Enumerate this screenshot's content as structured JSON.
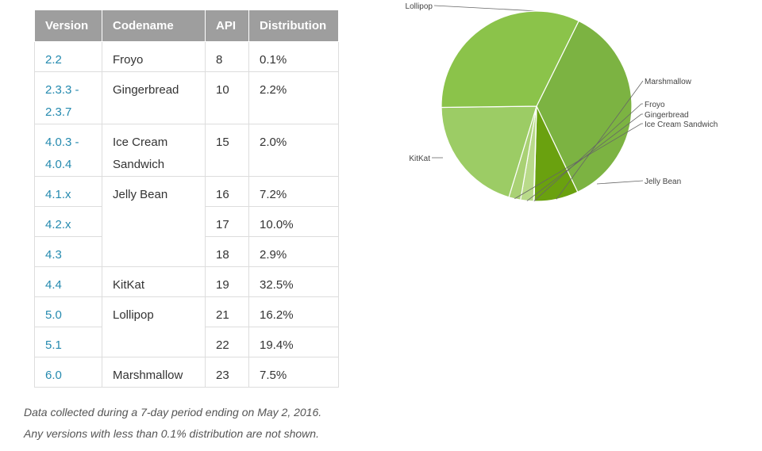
{
  "table": {
    "headers": [
      "Version",
      "Codename",
      "API",
      "Distribution"
    ],
    "rows": [
      {
        "version": "2.2",
        "codename": "Froyo",
        "api": "8",
        "distribution": "0.1%"
      },
      {
        "version": "2.3.3 -\n2.3.7",
        "codename": "Gingerbread",
        "api": "10",
        "distribution": "2.2%"
      },
      {
        "version": "4.0.3 -\n4.0.4",
        "codename": "Ice Cream\nSandwich",
        "api": "15",
        "distribution": "2.0%"
      },
      {
        "version": "4.1.x",
        "codename": "Jelly Bean",
        "api": "16",
        "distribution": "7.2%"
      },
      {
        "version": "4.2.x",
        "codename": "",
        "api": "17",
        "distribution": "10.0%"
      },
      {
        "version": "4.3",
        "codename": "",
        "api": "18",
        "distribution": "2.9%"
      },
      {
        "version": "4.4",
        "codename": "KitKat",
        "api": "19",
        "distribution": "32.5%"
      },
      {
        "version": "5.0",
        "codename": "Lollipop",
        "api": "21",
        "distribution": "16.2%"
      },
      {
        "version": "5.1",
        "codename": "",
        "api": "22",
        "distribution": "19.4%"
      },
      {
        "version": "6.0",
        "codename": "Marshmallow",
        "api": "23",
        "distribution": "7.5%"
      }
    ]
  },
  "notes": {
    "line1": "Data collected during a 7-day period ending on May 2, 2016.",
    "line2": "Any versions with less than 0.1% distribution are not shown."
  },
  "chart_data": {
    "type": "pie",
    "title": "",
    "slices": [
      {
        "label": "Lollipop",
        "value": 35.6,
        "color": "#7cb342"
      },
      {
        "label": "Marshmallow",
        "value": 7.5,
        "color": "#6aa10f"
      },
      {
        "label": "Froyo",
        "value": 0.1,
        "color": "#d4e9b5"
      },
      {
        "label": "Gingerbread",
        "value": 2.2,
        "color": "#b9da8a"
      },
      {
        "label": "Ice Cream Sandwich",
        "value": 2.0,
        "color": "#a9d174"
      },
      {
        "label": "Jelly Bean",
        "value": 20.1,
        "color": "#9ccc65"
      },
      {
        "label": "KitKat",
        "value": 32.5,
        "color": "#8bc34a"
      }
    ]
  }
}
